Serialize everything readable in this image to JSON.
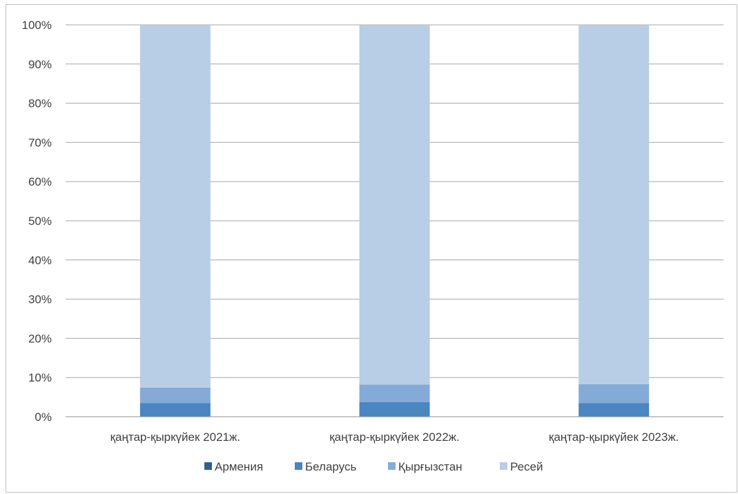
{
  "chart_data": {
    "type": "bar",
    "stacked": true,
    "percent": true,
    "categories": [
      "қаңтар-қыркүйек 2021ж.",
      "қаңтар-қыркүйек 2022ж.",
      "қаңтар-қыркүйек 2023ж."
    ],
    "series": [
      {
        "name": "Армения",
        "color": "#2e5f93",
        "values": [
          0.1,
          0.1,
          0.1
        ]
      },
      {
        "name": "Беларусь",
        "color": "#4a86c0",
        "values": [
          3.4,
          3.6,
          3.4
        ]
      },
      {
        "name": "Қырғызстан",
        "color": "#84abd7",
        "values": [
          3.9,
          4.5,
          4.8
        ]
      },
      {
        "name": "Ресей",
        "color": "#b8cde6",
        "values": [
          92.6,
          91.8,
          91.7
        ]
      }
    ],
    "y_ticks": [
      "0%",
      "10%",
      "20%",
      "30%",
      "40%",
      "50%",
      "60%",
      "70%",
      "80%",
      "90%",
      "100%"
    ],
    "ylim": [
      0,
      100
    ],
    "grid": true,
    "legend_position": "bottom"
  }
}
